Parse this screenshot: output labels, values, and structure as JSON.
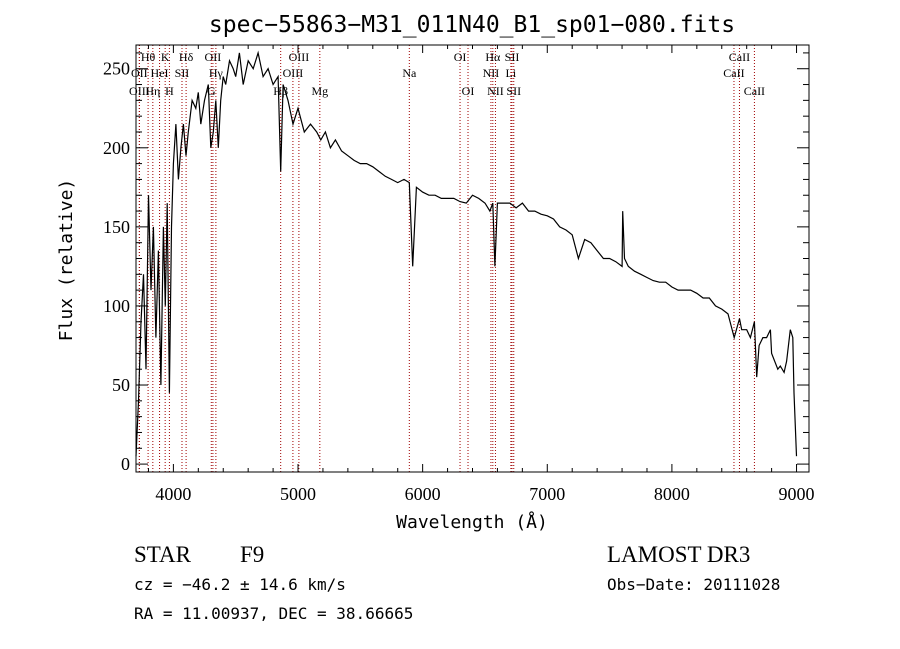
{
  "chart_data": {
    "type": "line",
    "title": "spec−55863−M31_011N40_B1_sp01−080.fits",
    "xlabel": "Wavelength (Å)",
    "ylabel": "Flux (relative)",
    "xlim": [
      3700,
      9100
    ],
    "ylim": [
      -5,
      265
    ],
    "x_ticks": [
      4000,
      5000,
      6000,
      7000,
      8000,
      9000
    ],
    "y_ticks": [
      0,
      50,
      100,
      150,
      200,
      250
    ],
    "series": [
      {
        "name": "spectrum",
        "x": [
          3700,
          3720,
          3740,
          3760,
          3780,
          3800,
          3820,
          3840,
          3860,
          3880,
          3900,
          3920,
          3935,
          3950,
          3968,
          3985,
          4000,
          4020,
          4040,
          4060,
          4080,
          4101,
          4120,
          4150,
          4180,
          4200,
          4220,
          4250,
          4280,
          4300,
          4320,
          4340,
          4360,
          4380,
          4400,
          4420,
          4450,
          4480,
          4500,
          4530,
          4560,
          4600,
          4640,
          4680,
          4720,
          4760,
          4800,
          4840,
          4861,
          4880,
          4900,
          4920,
          4960,
          5000,
          5050,
          5100,
          5150,
          5183,
          5220,
          5260,
          5300,
          5350,
          5400,
          5450,
          5500,
          5550,
          5600,
          5650,
          5700,
          5750,
          5800,
          5850,
          5893,
          5920,
          5950,
          6000,
          6050,
          6100,
          6150,
          6200,
          6250,
          6300,
          6350,
          6400,
          6450,
          6500,
          6540,
          6563,
          6580,
          6600,
          6650,
          6700,
          6750,
          6800,
          6850,
          6900,
          6950,
          7000,
          7050,
          7100,
          7150,
          7200,
          7250,
          7300,
          7350,
          7400,
          7450,
          7500,
          7550,
          7600,
          7605,
          7620,
          7650,
          7700,
          7750,
          7800,
          7850,
          7900,
          7950,
          8000,
          8050,
          8100,
          8150,
          8200,
          8250,
          8300,
          8350,
          8400,
          8450,
          8500,
          8542,
          8560,
          8600,
          8630,
          8662,
          8680,
          8700,
          8730,
          8760,
          8790,
          8800,
          8850,
          8870,
          8900,
          8920,
          8950,
          8970,
          8980,
          9000
        ],
        "y": [
          5,
          40,
          90,
          120,
          60,
          170,
          110,
          150,
          80,
          135,
          50,
          150,
          100,
          165,
          45,
          150,
          190,
          215,
          180,
          200,
          215,
          195,
          210,
          230,
          225,
          235,
          215,
          230,
          240,
          200,
          210,
          230,
          200,
          230,
          245,
          240,
          255,
          250,
          245,
          260,
          240,
          255,
          250,
          260,
          245,
          250,
          240,
          245,
          185,
          240,
          235,
          230,
          215,
          225,
          210,
          215,
          210,
          205,
          210,
          200,
          205,
          198,
          195,
          192,
          190,
          190,
          188,
          185,
          182,
          180,
          178,
          180,
          178,
          125,
          175,
          172,
          170,
          170,
          168,
          168,
          168,
          166,
          165,
          170,
          168,
          165,
          160,
          165,
          125,
          165,
          165,
          165,
          162,
          165,
          160,
          160,
          158,
          157,
          155,
          150,
          148,
          145,
          130,
          142,
          140,
          135,
          130,
          130,
          128,
          125,
          160,
          130,
          125,
          122,
          120,
          118,
          116,
          115,
          115,
          112,
          110,
          110,
          110,
          108,
          105,
          105,
          100,
          98,
          95,
          80,
          92,
          85,
          85,
          80,
          90,
          55,
          75,
          80,
          80,
          85,
          70,
          60,
          62,
          58,
          65,
          85,
          80,
          45,
          5
        ]
      }
    ],
    "spectral_lines": [
      {
        "label": "Hθ",
        "wl": 3797,
        "row": 1
      },
      {
        "label": "OII",
        "wl": 3727,
        "row": 2
      },
      {
        "label": "OIII",
        "wl": 3727,
        "row": 3
      },
      {
        "label": "HeI",
        "wl": 3889,
        "row": 2
      },
      {
        "label": "Hη",
        "wl": 3835,
        "row": 3
      },
      {
        "label": "K",
        "wl": 3934,
        "row": 1
      },
      {
        "label": "H",
        "wl": 3968,
        "row": 3
      },
      {
        "label": "SII",
        "wl": 4069,
        "row": 2
      },
      {
        "label": "Hδ",
        "wl": 4102,
        "row": 1
      },
      {
        "label": "OII",
        "wl": 4317,
        "row": 1
      },
      {
        "label": "Hγ",
        "wl": 4341,
        "row": 2
      },
      {
        "label": "G",
        "wl": 4304,
        "row": 3
      },
      {
        "label": "Hβ",
        "wl": 4861,
        "row": 3
      },
      {
        "label": "OIII",
        "wl": 4959,
        "row": 2
      },
      {
        "label": "OIII",
        "wl": 5007,
        "row": 1
      },
      {
        "label": "Mg",
        "wl": 5175,
        "row": 3
      },
      {
        "label": "Na",
        "wl": 5893,
        "row": 2
      },
      {
        "label": "OI",
        "wl": 6300,
        "row": 1
      },
      {
        "label": "OI",
        "wl": 6364,
        "row": 3
      },
      {
        "label": "Hα",
        "wl": 6563,
        "row": 1
      },
      {
        "label": "NII",
        "wl": 6548,
        "row": 2
      },
      {
        "label": "NII",
        "wl": 6584,
        "row": 3
      },
      {
        "label": "SII",
        "wl": 6717,
        "row": 1
      },
      {
        "label": "Li",
        "wl": 6708,
        "row": 2
      },
      {
        "label": "SII",
        "wl": 6731,
        "row": 3
      },
      {
        "label": "CaII",
        "wl": 8542,
        "row": 1
      },
      {
        "label": "CaII",
        "wl": 8498,
        "row": 2
      },
      {
        "label": "CaII",
        "wl": 8662,
        "row": 3
      }
    ]
  },
  "info": {
    "object_class": "STAR",
    "subclass": "F9",
    "survey": "LAMOST DR3",
    "cz": "cz = −46.2 ± 14.6 km/s",
    "obs_date": "Obs−Date: 20111028",
    "radec": "RA =  11.00937, DEC =  38.66665"
  }
}
